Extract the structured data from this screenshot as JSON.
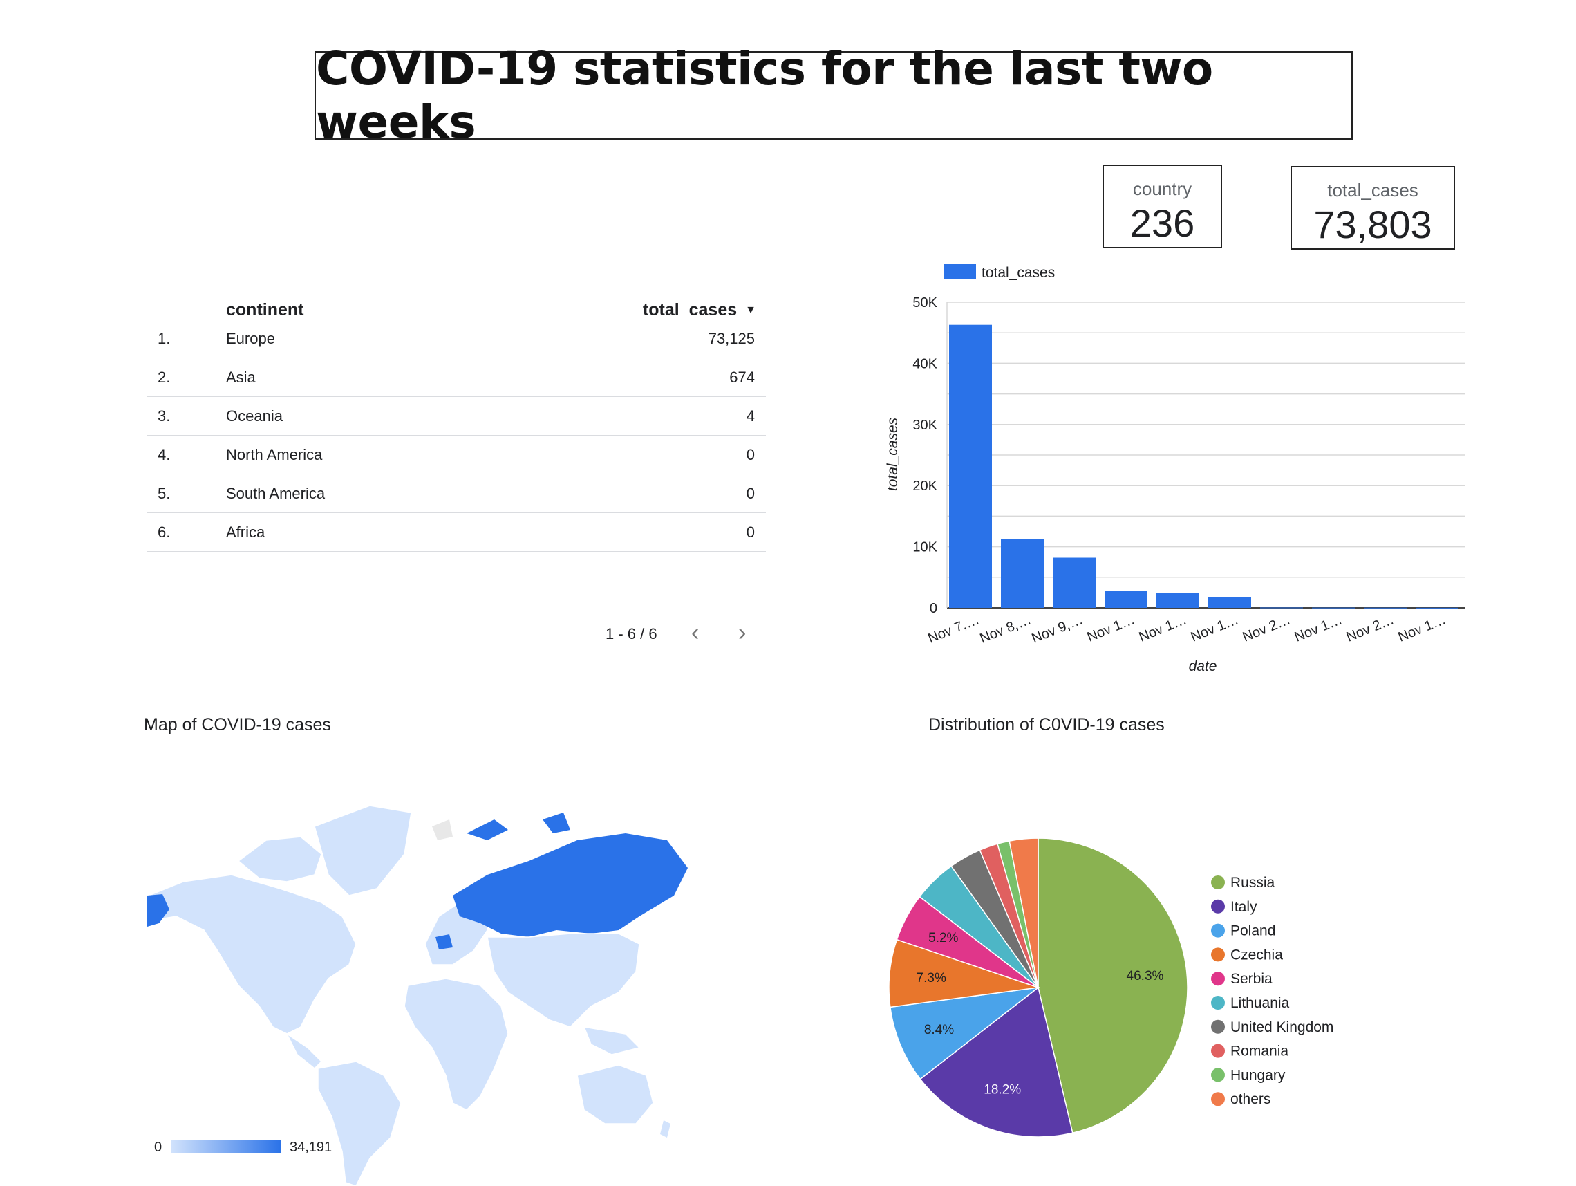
{
  "header": {
    "title": "COVID-19 statistics for the last two weeks"
  },
  "scorecards": [
    {
      "label": "country",
      "value": "236"
    },
    {
      "label": "total_cases",
      "value": "73,803"
    }
  ],
  "table": {
    "columns": [
      "continent",
      "total_cases"
    ],
    "sort_icon": "caret-down-icon",
    "rows": [
      {
        "index": "1.",
        "continent": "Europe",
        "total_cases": "73,125"
      },
      {
        "index": "2.",
        "continent": "Asia",
        "total_cases": "674"
      },
      {
        "index": "3.",
        "continent": "Oceania",
        "total_cases": "4"
      },
      {
        "index": "4.",
        "continent": "North America",
        "total_cases": "0"
      },
      {
        "index": "5.",
        "continent": "South America",
        "total_cases": "0"
      },
      {
        "index": "6.",
        "continent": "Africa",
        "total_cases": "0"
      }
    ],
    "pagination": {
      "label": "1 - 6 / 6",
      "prev": "‹",
      "next": "›"
    }
  },
  "map": {
    "title": "Map of COVID-19 cases",
    "scale_min": "0",
    "scale_max": "34,191",
    "colors": {
      "high": "#2a72e8",
      "low": "#d2e3fc",
      "nodata": "#e8e8e8"
    }
  },
  "chart_data": [
    {
      "type": "bar",
      "legend": "total_cases",
      "legend_position": "top-left",
      "categories": [
        "Nov 7,…",
        "Nov 8,…",
        "Nov 9,…",
        "Nov 1…",
        "Nov 1…",
        "Nov 1…",
        "Nov 2…",
        "Nov 1…",
        "Nov 2…",
        "Nov 1…"
      ],
      "values": [
        46300,
        11300,
        8200,
        2800,
        2400,
        1800,
        60,
        40,
        30,
        20
      ],
      "xlabel": "date",
      "ylabel": "total_cases",
      "ylim": [
        0,
        50000
      ],
      "ytick_values": [
        0,
        10000,
        20000,
        30000,
        40000,
        50000
      ],
      "ytick_labels": [
        "0",
        "10K",
        "20K",
        "30K",
        "40K",
        "50K"
      ],
      "grid": true,
      "color": "#2a72e8"
    },
    {
      "type": "pie",
      "title": "Distribution of C0VID-19 cases",
      "legend_position": "right",
      "slices": [
        {
          "label": "Russia",
          "value": 46.3,
          "display": "46.3%",
          "color": "#8ab251"
        },
        {
          "label": "Italy",
          "value": 18.2,
          "display": "18.2%",
          "color": "#5a3aa8"
        },
        {
          "label": "Poland",
          "value": 8.4,
          "display": "8.4%",
          "color": "#4aa3ea"
        },
        {
          "label": "Czechia",
          "value": 7.3,
          "display": "7.3%",
          "color": "#e8762c"
        },
        {
          "label": "Serbia",
          "value": 5.2,
          "display": "5.2%",
          "color": "#e0368a"
        },
        {
          "label": "Lithuania",
          "value": 4.7,
          "display": "",
          "color": "#4db6c6"
        },
        {
          "label": "United Kingdom",
          "value": 3.5,
          "display": "",
          "color": "#717171"
        },
        {
          "label": "Romania",
          "value": 2.0,
          "display": "",
          "color": "#e06060"
        },
        {
          "label": "Hungary",
          "value": 1.3,
          "display": "",
          "color": "#79c06a"
        },
        {
          "label": "others",
          "value": 3.1,
          "display": "",
          "color": "#f07a4a"
        }
      ]
    }
  ]
}
